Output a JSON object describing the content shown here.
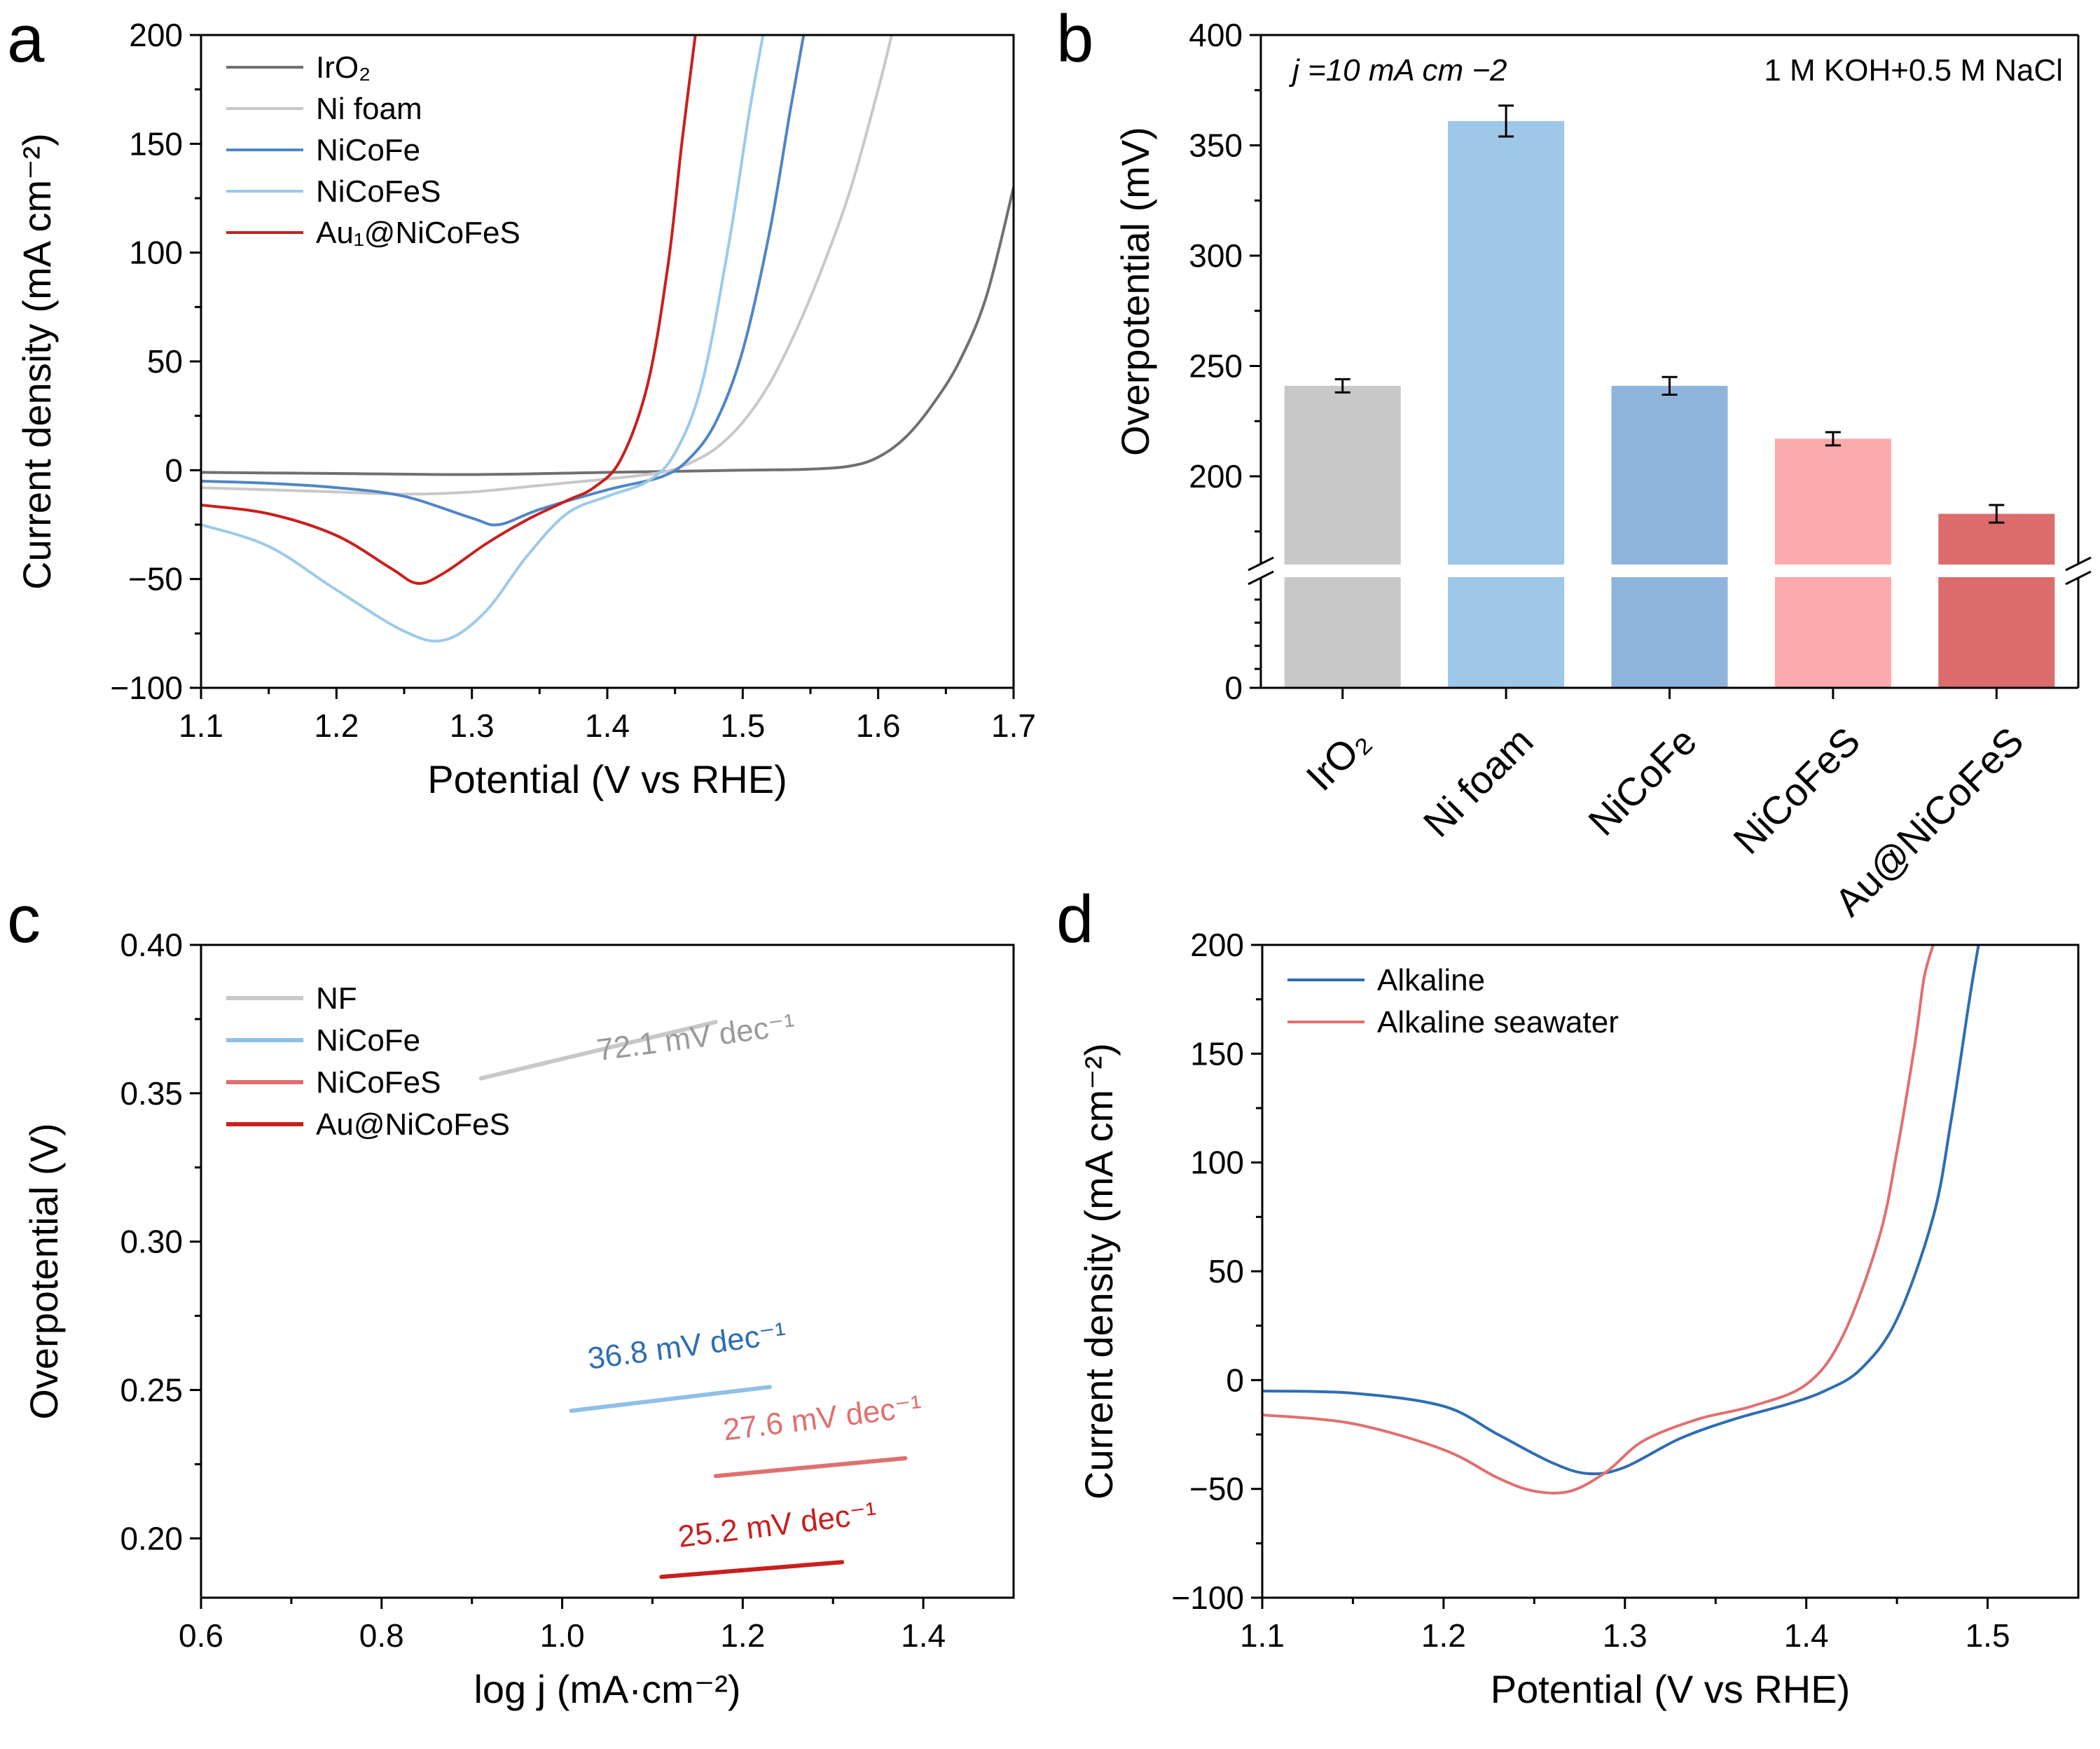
{
  "chart_data": [
    {
      "panel": "a",
      "type": "line",
      "xlabel": "Potential (V vs RHE)",
      "ylabel": "Current density (mA cm⁻²)",
      "xlim": [
        1.1,
        1.7
      ],
      "ylim": [
        -100,
        200
      ],
      "xticks": [
        1.1,
        1.2,
        1.3,
        1.4,
        1.5,
        1.6,
        1.7
      ],
      "yticks": [
        -100,
        -50,
        0,
        50,
        100,
        150,
        200
      ],
      "xtick_labels": [
        "1.1",
        "1.2",
        "1.3",
        "1.4",
        "1.5",
        "1.6",
        "1.7"
      ],
      "ytick_labels": [
        "−100",
        "−50",
        "0",
        "50",
        "100",
        "150",
        "200"
      ],
      "legend": {
        "position": "top-left"
      },
      "series": [
        {
          "name": "IrO₂",
          "color": "#707070",
          "x": [
            1.1,
            1.2,
            1.3,
            1.4,
            1.5,
            1.55,
            1.58,
            1.6,
            1.62,
            1.64,
            1.66,
            1.68,
            1.7
          ],
          "y": [
            -1,
            -1.5,
            -2,
            -1,
            0,
            0.5,
            2,
            6,
            15,
            30,
            50,
            80,
            130
          ]
        },
        {
          "name": "Ni foam",
          "color": "#c8c8c8",
          "x": [
            1.1,
            1.2,
            1.25,
            1.3,
            1.35,
            1.4,
            1.44,
            1.46,
            1.48,
            1.5,
            1.52,
            1.54,
            1.56,
            1.58,
            1.6,
            1.61
          ],
          "y": [
            -8,
            -10,
            -11,
            -10,
            -7,
            -4,
            -1,
            3,
            10,
            22,
            40,
            65,
            95,
            130,
            175,
            200
          ]
        },
        {
          "name": "NiCoFe",
          "color": "#4f86c6",
          "x": [
            1.1,
            1.15,
            1.2,
            1.25,
            1.3,
            1.32,
            1.35,
            1.4,
            1.44,
            1.46,
            1.48,
            1.5,
            1.52,
            1.535,
            1.545
          ],
          "y": [
            -5,
            -6,
            -8,
            -12,
            -22,
            -25,
            -18,
            -9,
            -3,
            5,
            22,
            55,
            110,
            165,
            200
          ]
        },
        {
          "name": "NiCoFeS",
          "color": "#9ccaeb",
          "x": [
            1.1,
            1.15,
            1.2,
            1.25,
            1.28,
            1.31,
            1.34,
            1.37,
            1.4,
            1.43,
            1.45,
            1.47,
            1.49,
            1.505,
            1.515
          ],
          "y": [
            -25,
            -35,
            -55,
            -74,
            -78,
            -65,
            -40,
            -20,
            -12,
            -5,
            8,
            40,
            105,
            165,
            200
          ]
        },
        {
          "name": "Au₁@NiCoFeS",
          "color": "#c8201e",
          "x": [
            1.1,
            1.15,
            1.2,
            1.24,
            1.26,
            1.28,
            1.31,
            1.34,
            1.37,
            1.39,
            1.41,
            1.43,
            1.445,
            1.455,
            1.465
          ],
          "y": [
            -16,
            -20,
            -30,
            -45,
            -52,
            -47,
            -34,
            -23,
            -14,
            -8,
            5,
            40,
            95,
            150,
            200
          ]
        }
      ]
    },
    {
      "panel": "b",
      "type": "bar",
      "ylabel": "Overpotential (mV)",
      "categories": [
        "IrO₂",
        "Ni foam",
        "NiCoFe",
        "NiCoFeS",
        "Au@NiCoFeS"
      ],
      "values": [
        241,
        361,
        241,
        217,
        183
      ],
      "errors": [
        3,
        7,
        4,
        3,
        4
      ],
      "colors": [
        "#c8c8c8",
        "#9ec7e8",
        "#8fb4db",
        "#fcaaab",
        "#dc6c6c"
      ],
      "ylim_upper": [
        160,
        400
      ],
      "yticks": [
        0,
        200,
        250,
        300,
        350,
        400
      ],
      "ytick_labels": [
        "0",
        "200",
        "250",
        "300",
        "350",
        "400"
      ],
      "axis_break": true,
      "annotation_left": "j =10 mA cm −2",
      "annotation_right": "1 M KOH+0.5 M NaCl"
    },
    {
      "panel": "c",
      "type": "line",
      "xlabel": "log j (mA·cm⁻²)",
      "ylabel": "Overpotential (V)",
      "xlim": [
        0.6,
        1.5
      ],
      "ylim": [
        0.18,
        0.4
      ],
      "xticks": [
        0.6,
        0.8,
        1.0,
        1.2,
        1.4
      ],
      "yticks": [
        0.2,
        0.25,
        0.3,
        0.35,
        0.4
      ],
      "xtick_labels": [
        "0.6",
        "0.8",
        "1.0",
        "1.2",
        "1.4"
      ],
      "ytick_labels": [
        "0.20",
        "0.25",
        "0.30",
        "0.35",
        "0.40"
      ],
      "legend": {
        "position": "top-left"
      },
      "series": [
        {
          "name": "NF",
          "color": "#c8c8c8",
          "x": [
            0.91,
            1.17
          ],
          "y": [
            0.355,
            0.374
          ],
          "slope_label": "72.1 mV dec⁻¹"
        },
        {
          "name": "NiCoFe",
          "color": "#8fc0e6",
          "x": [
            1.01,
            1.23
          ],
          "y": [
            0.243,
            0.251
          ],
          "slope_label": "36.8 mV dec⁻¹"
        },
        {
          "name": "NiCoFeS",
          "color": "#e07070",
          "x": [
            1.17,
            1.38
          ],
          "y": [
            0.221,
            0.227
          ],
          "slope_label": "27.6 mV dec⁻¹"
        },
        {
          "name": "Au@NiCoFeS",
          "color": "#c8201e",
          "x": [
            1.11,
            1.31
          ],
          "y": [
            0.187,
            0.192
          ],
          "slope_label": "25.2 mV dec⁻¹"
        }
      ]
    },
    {
      "panel": "d",
      "type": "line",
      "xlabel": "Potential (V vs RHE)",
      "ylabel": "Current density (mA cm⁻²)",
      "xlim": [
        1.1,
        1.55
      ],
      "ylim": [
        -100,
        200
      ],
      "xticks": [
        1.1,
        1.2,
        1.3,
        1.4,
        1.5
      ],
      "yticks": [
        -100,
        -50,
        0,
        50,
        100,
        150,
        200
      ],
      "xtick_labels": [
        "1.1",
        "1.2",
        "1.3",
        "1.4",
        "1.5"
      ],
      "ytick_labels": [
        "−100",
        "−50",
        "0",
        "50",
        "100",
        "150",
        "200"
      ],
      "legend": {
        "position": "top-left"
      },
      "series": [
        {
          "name": "Alkaline",
          "color": "#2e6db4",
          "x": [
            1.1,
            1.15,
            1.2,
            1.23,
            1.26,
            1.28,
            1.3,
            1.33,
            1.36,
            1.39,
            1.41,
            1.43,
            1.45,
            1.47,
            1.48,
            1.49,
            1.495
          ],
          "y": [
            -5,
            -6,
            -12,
            -25,
            -38,
            -43,
            -40,
            -27,
            -18,
            -11,
            -5,
            5,
            28,
            75,
            120,
            175,
            200
          ]
        },
        {
          "name": "Alkaline seawater",
          "color": "#e07070",
          "x": [
            1.1,
            1.15,
            1.2,
            1.23,
            1.25,
            1.27,
            1.29,
            1.31,
            1.34,
            1.37,
            1.4,
            1.42,
            1.44,
            1.45,
            1.46,
            1.465,
            1.47
          ],
          "y": [
            -16,
            -20,
            -32,
            -45,
            -51,
            -51,
            -42,
            -28,
            -18,
            -12,
            -2,
            20,
            65,
            105,
            155,
            185,
            200
          ]
        }
      ]
    }
  ],
  "panel_letters": {
    "a": "a",
    "b": "b",
    "c": "c",
    "d": "d"
  }
}
